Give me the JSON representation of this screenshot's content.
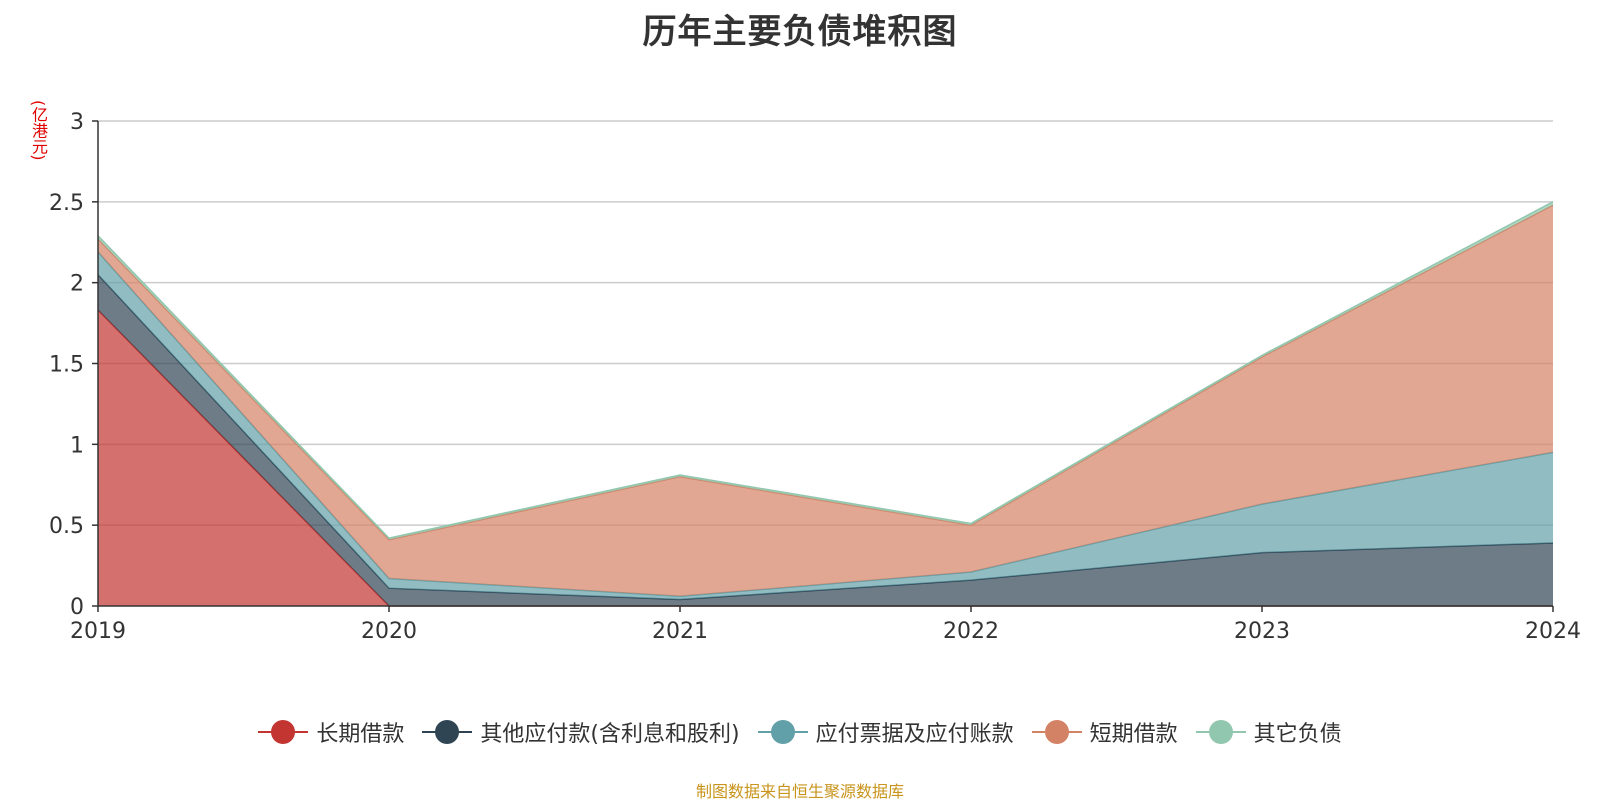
{
  "chart_data": {
    "type": "area",
    "stacked": true,
    "title": "历年主要负债堆积图",
    "y_unit": "(亿港元)",
    "x": [
      "2019",
      "2020",
      "2021",
      "2022",
      "2023",
      "2024"
    ],
    "ylim": [
      0,
      3
    ],
    "y_ticks": [
      "0",
      "0.5",
      "1",
      "1.5",
      "2",
      "2.5",
      "3"
    ],
    "grid": true,
    "legend_position": "bottom",
    "series": [
      {
        "name": "长期借款",
        "color": "#c23531",
        "values": [
          1.83,
          0,
          0,
          0,
          0,
          0
        ]
      },
      {
        "name": "其他应付款(含利息和股利)",
        "color": "#2f4554",
        "values": [
          0.22,
          0.11,
          0.04,
          0.16,
          0.33,
          0.39
        ]
      },
      {
        "name": "应付票据及应付账款",
        "color": "#61a0a8",
        "values": [
          0.14,
          0.06,
          0.02,
          0.05,
          0.3,
          0.56
        ]
      },
      {
        "name": "短期借款",
        "color": "#d48265",
        "values": [
          0.08,
          0.24,
          0.74,
          0.29,
          0.91,
          1.53
        ]
      },
      {
        "name": "其它负债",
        "color": "#91c7ae",
        "values": [
          0.02,
          0.01,
          0.01,
          0.01,
          0.01,
          0.02
        ]
      }
    ]
  },
  "source_note": "制图数据来自恒生聚源数据库"
}
